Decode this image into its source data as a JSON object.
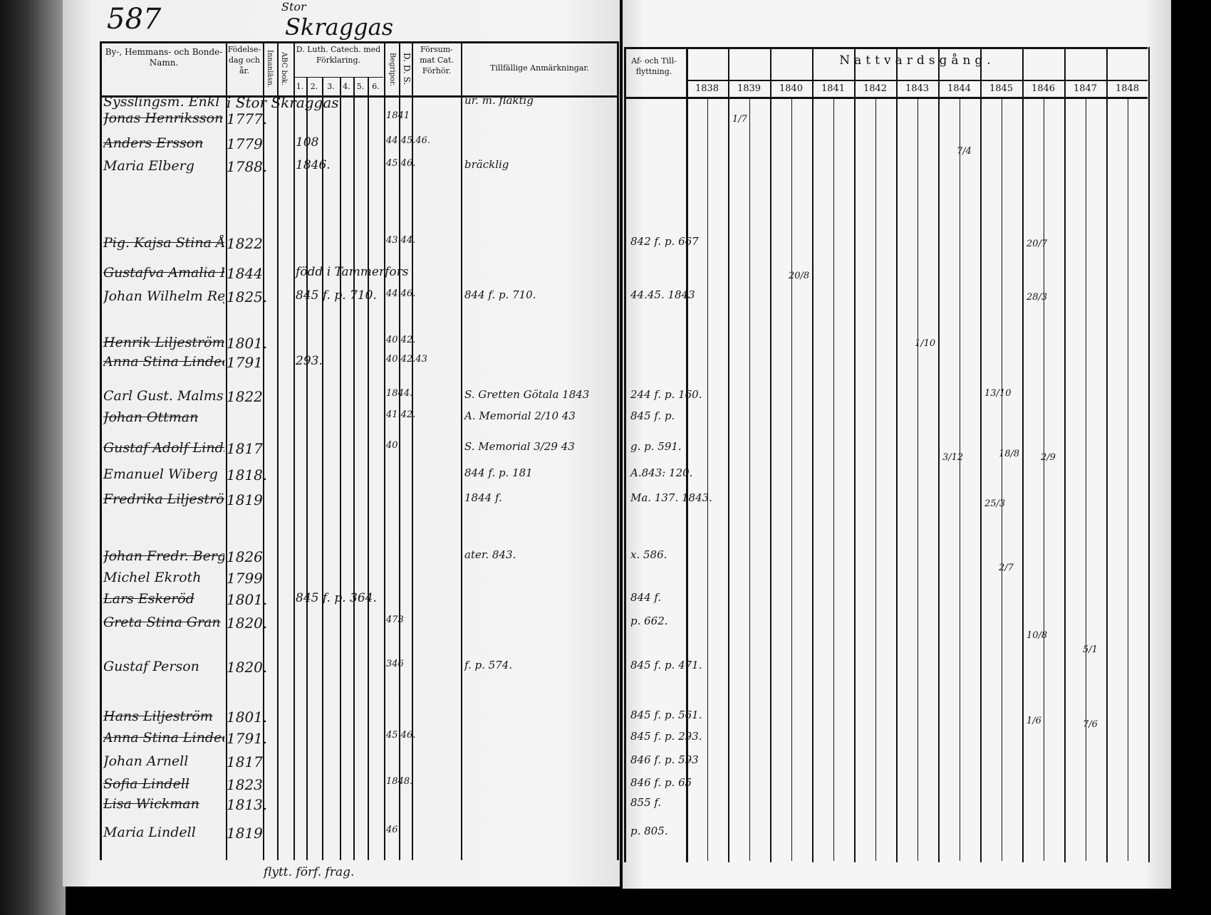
{
  "folio": "587",
  "place": "Skraggas",
  "place_prefix": "Stor",
  "left_header": {
    "name_col": "By-, Hemmans- och Bonde-Namn.",
    "birth_col": "Födelse-dag och år.",
    "innanlasn": "Innanläsn.",
    "abc": "ABC bok.",
    "catech": "D. Luth. Catech. med Förklaring.",
    "catech_parts": [
      "1.",
      "2.",
      "3.",
      "4.",
      "5.",
      "6."
    ],
    "begrip": "Begripor.",
    "dds": "D. D. S.",
    "forsum": "Försum-mat Cat. Förhör.",
    "remarks": "Tillfällige Anmärkningar."
  },
  "right_header": {
    "flytt": "Af- och Till-flyttning.",
    "natt": "Nattvardsgång.",
    "years": [
      "1838",
      "1839",
      "1840",
      "1841",
      "1842",
      "1843",
      "1844",
      "1845",
      "1846",
      "1847",
      "1848"
    ]
  },
  "entries": [
    {
      "name": "Sysslingsm. Enkl",
      "born": "i Stor Skraggas",
      "cat": "",
      "forsum": "",
      "remark": "ur. m. flaktig",
      "flytt": ""
    },
    {
      "name": "Jonas Henriksson",
      "born": "1777.",
      "cat": "",
      "forsum": "1841",
      "remark": "",
      "flytt": ""
    },
    {
      "name": "Anders Ersson",
      "born": "1779",
      "cat": "108",
      "forsum": "44.45.46.",
      "remark": "",
      "flytt": ""
    },
    {
      "name": "Maria Elberg",
      "born": "1788.",
      "cat": "1846.",
      "forsum": "45.46.",
      "remark": "bräcklig",
      "flytt": ""
    },
    {
      "name": "Pig. Kajsa Stina Åberg",
      "born": "1822",
      "cat": "",
      "forsum": "43.44.",
      "remark": "",
      "flytt": "842 f. p. 667"
    },
    {
      "name": "Gustafva Amalia Fagerholm",
      "born": "1844",
      "cat": "född i Tammerfors",
      "forsum": "",
      "remark": "",
      "flytt": ""
    },
    {
      "name": "Johan Wilhelm Rejfors",
      "born": "1825.",
      "cat": "845 f. p. 710.",
      "forsum": "44.46.",
      "remark": "844 f. p. 710.",
      "flytt": "44.45. 1843"
    },
    {
      "name": "Henrik Liljeström",
      "born": "1801.",
      "cat": "",
      "forsum": "40.42.",
      "remark": "",
      "flytt": ""
    },
    {
      "name": "Anna Stina Lindeen",
      "born": "1791",
      "cat": "293.",
      "forsum": "40.42.43",
      "remark": "",
      "flytt": ""
    },
    {
      "name": "Carl Gust. Malmsten",
      "born": "1822",
      "cat": "",
      "forsum": "1844.",
      "remark": "S. Gretten Götala 1843",
      "flytt": "244 f. p. 160."
    },
    {
      "name": "Johan Ottman",
      "born": "",
      "cat": "",
      "forsum": "41.42.",
      "remark": "A. Memorial 2/10 43",
      "flytt": "845 f. p."
    },
    {
      "name": "Gustaf Adolf Lindström",
      "born": "1817",
      "cat": "",
      "forsum": "40.",
      "remark": "S. Memorial 3/29 43",
      "flytt": "g. p. 591."
    },
    {
      "name": "Emanuel Wiberg",
      "born": "1818.",
      "cat": "",
      "forsum": "",
      "remark": "844 f. p. 181",
      "flytt": "A.843: 120."
    },
    {
      "name": "Fredrika Liljeström",
      "born": "1819",
      "cat": "",
      "forsum": "",
      "remark": "1844 f.",
      "flytt": "Ma. 137. 1843."
    },
    {
      "name": "Johan Fredr. Berg",
      "born": "1826",
      "cat": "",
      "forsum": "",
      "remark": "ater. 843.",
      "flytt": "x. 586."
    },
    {
      "name": "Michel Ekroth",
      "born": "1799",
      "cat": "",
      "forsum": "",
      "remark": "",
      "flytt": ""
    },
    {
      "name": "Lars Eskeröd",
      "born": "1801.",
      "cat": "845 f. p. 364.",
      "forsum": "",
      "remark": "",
      "flytt": "844 f."
    },
    {
      "name": "Greta Stina Gran",
      "born": "1820.",
      "cat": "",
      "forsum": "473",
      "remark": "",
      "flytt": "p. 662."
    },
    {
      "name": "Gustaf Person",
      "born": "1820.",
      "cat": "",
      "forsum": "346",
      "remark": "f. p. 574.",
      "flytt": "845 f. p. 471."
    },
    {
      "name": "Hans Liljeström",
      "born": "1801.",
      "cat": "",
      "forsum": "",
      "remark": "",
      "flytt": "845 f. p. 561."
    },
    {
      "name": "Anna Stina Lindeen",
      "born": "1791.",
      "cat": "",
      "forsum": "45.46.",
      "remark": "",
      "flytt": "845 f. p. 293."
    },
    {
      "name": "Johan Arnell",
      "born": "1817",
      "cat": "",
      "forsum": "",
      "remark": "",
      "flytt": "846 f. p. 593"
    },
    {
      "name": "Sofia Lindell",
      "born": "1823",
      "cat": "",
      "forsum": "1848.",
      "remark": "",
      "flytt": "846 f. p. 65"
    },
    {
      "name": "Lisa Wickman",
      "born": "1813.",
      "cat": "",
      "forsum": "",
      "remark": "",
      "flytt": "855 f."
    },
    {
      "name": "Maria Lindell",
      "born": "1819",
      "cat": "",
      "forsum": "46.",
      "remark": "",
      "flytt": "p. 805."
    }
  ],
  "communion_marks": [
    {
      "year": "1839",
      "text": "1/7"
    },
    {
      "year": "1844",
      "text": "7/4"
    },
    {
      "year": "1846",
      "text": "20/7"
    },
    {
      "year": "1840",
      "text": "20/8"
    },
    {
      "year": "1846",
      "text": "28/3"
    },
    {
      "year": "1843",
      "text": "1/10"
    },
    {
      "year": "1845",
      "text": "13/10"
    },
    {
      "year": "1845",
      "text": "18/8"
    },
    {
      "year": "1844",
      "text": "3/12"
    },
    {
      "year": "1846",
      "text": "2/9"
    },
    {
      "year": "1845",
      "text": "25/3"
    },
    {
      "year": "1845",
      "text": "2/7"
    },
    {
      "year": "1846",
      "text": "10/8"
    },
    {
      "year": "1847",
      "text": "5/1"
    },
    {
      "year": "1846",
      "text": "1/6"
    },
    {
      "year": "1847",
      "text": "7/6"
    }
  ],
  "footer_note": "flytt. förf. frag."
}
